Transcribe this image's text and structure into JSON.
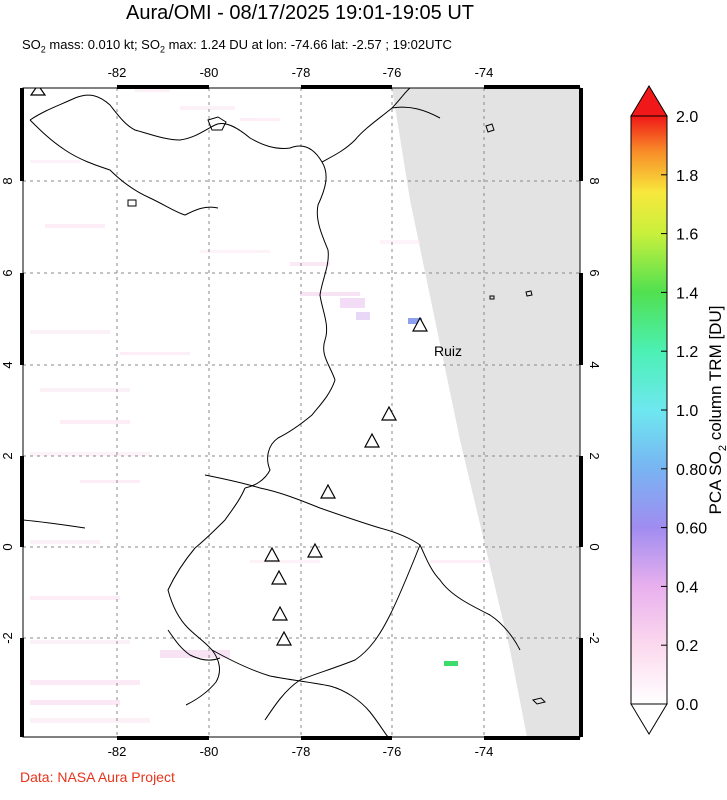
{
  "title": "Aura/OMI - 08/17/2025 19:01-19:05 UT",
  "subtitle": {
    "part1": "SO",
    "sub1": "2",
    "part2": " mass: 0.010 kt; SO",
    "sub2": "2",
    "part3": " max: 1.24 DU at lon: -74.66 lat: -2.57 ; 19:02UTC"
  },
  "credit": "Data: NASA Aura Project",
  "map": {
    "lon_labels": [
      "-82",
      "-80",
      "-78",
      "-76",
      "-74"
    ],
    "lat_labels": [
      "8",
      "6",
      "4",
      "2",
      "0",
      "-2"
    ],
    "volcano_label": "Ruiz",
    "colors": {
      "no_data": "#e3e3e3",
      "coast": "#000000",
      "grid": "#8a8a8a"
    }
  },
  "colorbar": {
    "label_main": "PCA SO",
    "label_sub": "2",
    "label_rest": " column TRM [DU]",
    "ticks": [
      "2.0",
      "1.8",
      "1.6",
      "1.4",
      "1.2",
      "1.0",
      "0.80",
      "0.60",
      "0.4",
      "0.2",
      "0.0"
    ],
    "range": [
      0.0,
      2.0
    ]
  }
}
